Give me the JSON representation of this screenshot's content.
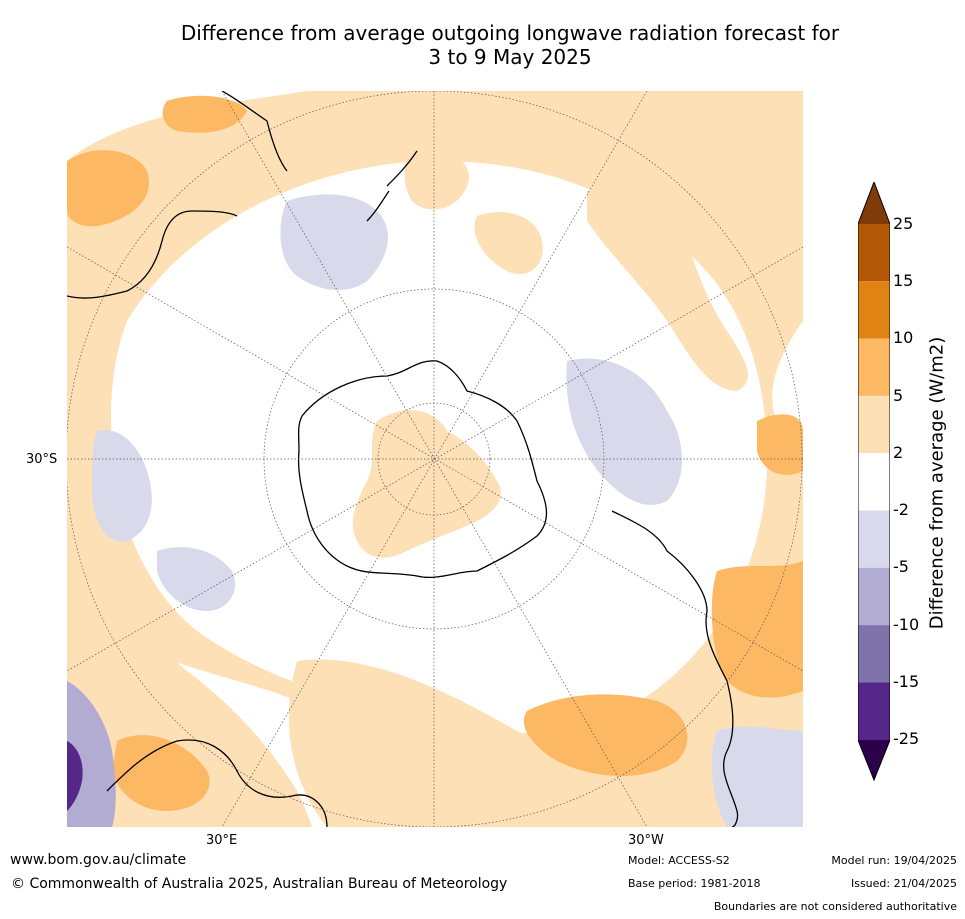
{
  "title": {
    "line1": "Difference from average outgoing longwave radiation forecast for",
    "line2": "3 to 9 May 2025"
  },
  "map": {
    "projection": "south-polar-stereographic",
    "labels": {
      "lat_30s": "30°S",
      "lon_30e": "30°E",
      "lon_30w": "30°W"
    }
  },
  "colorbar": {
    "title": "Difference from average (W/m2)",
    "ticks": [
      "25",
      "15",
      "10",
      "5",
      "2",
      "-2",
      "-5",
      "-10",
      "-15",
      "-25"
    ],
    "bins": [
      {
        "from": "-25",
        "to": "-15",
        "color": "#542788"
      },
      {
        "from": "-15",
        "to": "-10",
        "color": "#8073ac"
      },
      {
        "from": "-10",
        "to": "-5",
        "color": "#b2abd2"
      },
      {
        "from": "-5",
        "to": "-2",
        "color": "#d8daeb"
      },
      {
        "from": "-2",
        "to": "2",
        "color": "#ffffff"
      },
      {
        "from": "2",
        "to": "5",
        "color": "#fee0b6"
      },
      {
        "from": "5",
        "to": "10",
        "color": "#fdb863"
      },
      {
        "from": "10",
        "to": "15",
        "color": "#e08214"
      },
      {
        "from": "15",
        "to": "25",
        "color": "#b35806"
      }
    ],
    "extend_low_color": "#2d004b",
    "extend_high_color": "#7f3b08"
  },
  "footer": {
    "url": "www.bom.gov.au/climate",
    "copyright": "© Commonwealth of Australia 2025, Australian Bureau of Meteorology",
    "model": "Model: ACCESS-S2",
    "base_period": "Base period: 1981-2018",
    "model_run": "Model run: 19/04/2025",
    "issued": "Issued: 21/04/2025",
    "disclaimer": "Boundaries are not considered authoritative"
  }
}
